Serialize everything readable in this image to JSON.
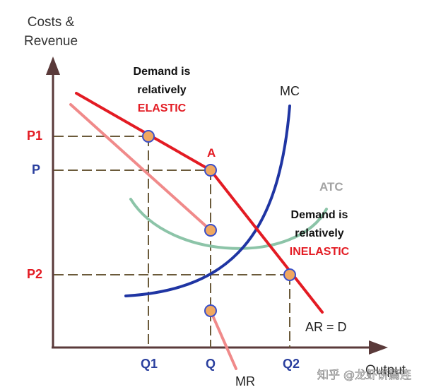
{
  "axis": {
    "y_label_line1": "Costs &",
    "y_label_line2": "Revenue",
    "x_label": "Output"
  },
  "price_labels": {
    "p1": "P1",
    "p": "P",
    "p2": "P2"
  },
  "quantity_labels": {
    "q1": "Q1",
    "q": "Q",
    "q2": "Q2"
  },
  "curve_labels": {
    "mc": "MC",
    "atc": "ATC",
    "mr": "MR",
    "ard": "AR = D"
  },
  "point_labels": {
    "a": "A"
  },
  "annotations": {
    "elastic_line1": "Demand is",
    "elastic_line2": "relatively",
    "elastic_line3": "ELASTIC",
    "inelastic_line1": "Demand is",
    "inelastic_line2": "relatively",
    "inelastic_line3": "INELASTIC"
  },
  "watermark": "知乎 @龙虾饼篇连",
  "colors": {
    "demand": "#e31b23",
    "mr": "#f08a8a",
    "mc": "#1f35a3",
    "atc": "#8cc4a8",
    "axis": "#5a3a3a",
    "dash": "#6b5a3a",
    "point_fill": "#f0a860",
    "point_stroke": "#3a4fc8",
    "red_label": "#e31b23",
    "blue_label": "#2a3f9e"
  }
}
